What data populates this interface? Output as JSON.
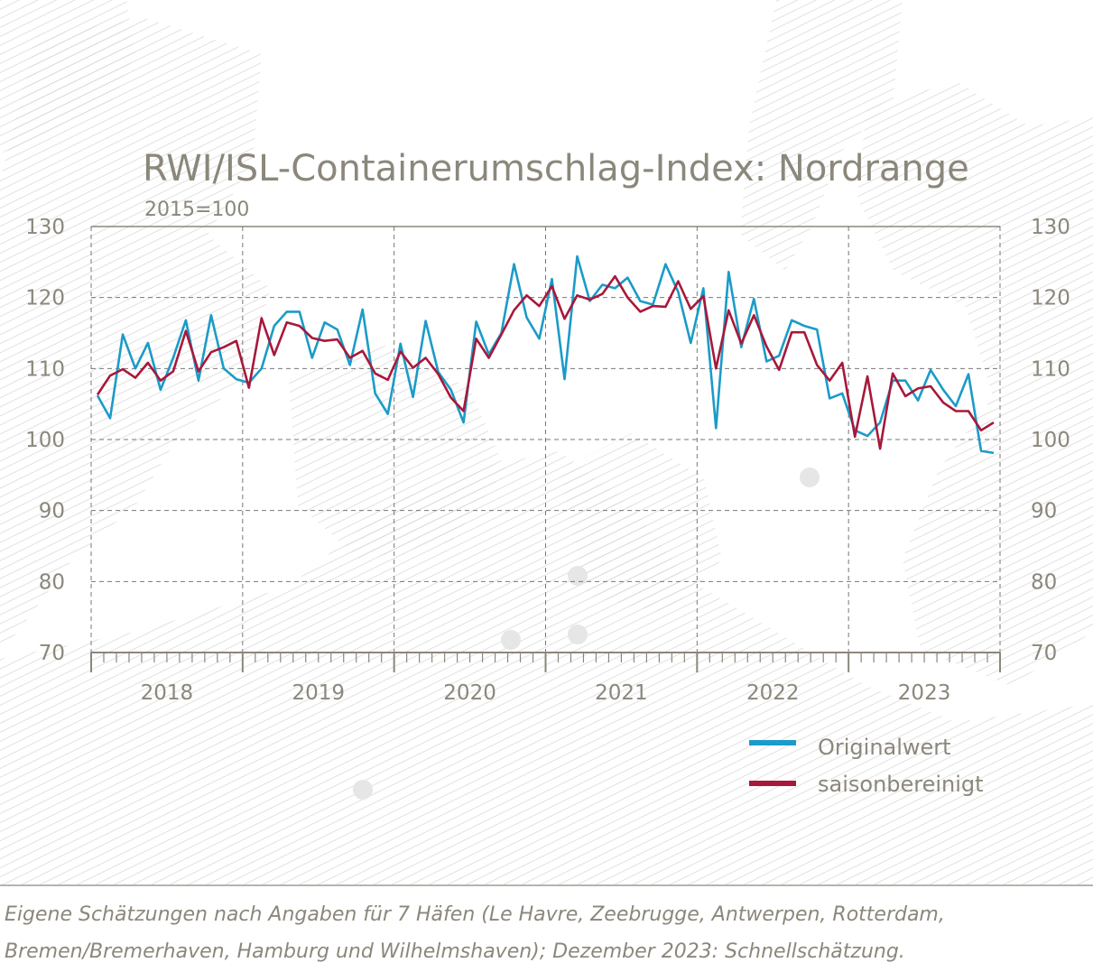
{
  "chart_data": {
    "type": "line",
    "title": "RWI/ISL-Containerumschlag-Index: Nordrange",
    "subtitle": "2015=100",
    "ylim": [
      70,
      130
    ],
    "y_ticks": [
      70,
      80,
      90,
      100,
      110,
      120,
      130
    ],
    "year_labels": [
      "2018",
      "2019",
      "2020",
      "2021",
      "2022",
      "2023"
    ],
    "x_start": "2018-01",
    "x_end": "2023-12",
    "grid": true,
    "legend_position": "bottom-right",
    "series": [
      {
        "name": "Originalwert",
        "color": "#1b9bc8",
        "values": [
          106.2,
          103.0,
          114.8,
          110.0,
          113.6,
          107.0,
          111.5,
          116.8,
          108.3,
          117.5,
          110.0,
          108.5,
          108.0,
          110.0,
          116.0,
          118.0,
          118.0,
          111.5,
          116.5,
          115.5,
          110.5,
          118.3,
          106.5,
          103.6,
          113.5,
          106.0,
          116.7,
          109.5,
          107.0,
          102.4,
          116.6,
          112.0,
          115.0,
          124.7,
          117.2,
          114.2,
          122.6,
          108.5,
          125.8,
          119.5,
          121.8,
          121.3,
          122.8,
          119.5,
          119.0,
          124.7,
          120.8,
          113.6,
          121.3,
          101.6,
          123.6,
          113.0,
          119.8,
          111.0,
          111.8,
          116.8,
          116.0,
          115.5,
          105.8,
          106.5,
          101.3,
          100.5,
          102.4,
          108.3,
          108.3,
          105.5,
          109.8,
          107.0,
          104.7,
          109.2,
          98.4,
          98.1
        ]
      },
      {
        "name": "saisonbereinigt",
        "color": "#a8183a",
        "values": [
          106.3,
          109.0,
          109.9,
          108.7,
          110.8,
          108.3,
          109.6,
          115.3,
          109.6,
          112.3,
          113.0,
          113.9,
          107.3,
          117.1,
          111.9,
          116.5,
          116.0,
          114.3,
          113.9,
          114.1,
          111.5,
          112.5,
          109.3,
          108.4,
          112.4,
          110.1,
          111.5,
          109.2,
          105.9,
          104.0,
          114.2,
          111.5,
          114.8,
          118.2,
          120.3,
          118.8,
          121.6,
          117.0,
          120.3,
          119.7,
          120.5,
          123.0,
          120.0,
          118.0,
          118.8,
          118.7,
          122.3,
          118.4,
          120.2,
          110.0,
          118.2,
          113.5,
          117.5,
          113.1,
          109.8,
          115.1,
          115.1,
          110.5,
          108.3,
          110.8,
          100.4,
          108.9,
          98.7,
          109.3,
          106.1,
          107.2,
          107.5,
          105.2,
          104.0,
          104.0,
          101.3,
          102.4
        ]
      }
    ]
  },
  "footnote": {
    "line1": "Eigene Schätzungen nach Angaben für 7 Häfen (Le Havre, Zeebrugge, Antwerpen, Rotterdam,",
    "line2": "Bremen/Bremerhaven, Hamburg und Wilhelmshaven); Dezember 2023: Schnellschätzung."
  }
}
